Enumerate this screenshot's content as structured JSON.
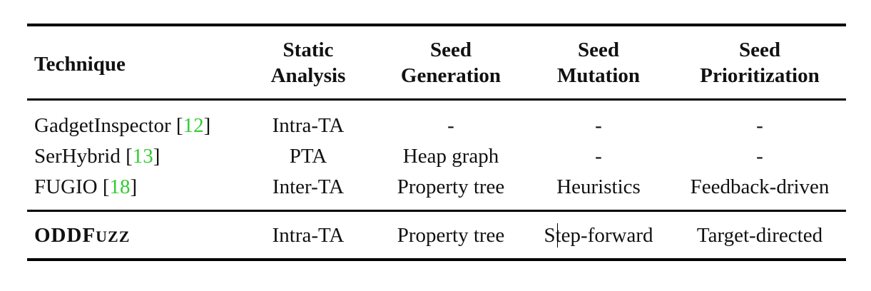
{
  "header": {
    "technique": "Technique",
    "static_analysis": [
      "Static",
      "Analysis"
    ],
    "seed_generation": [
      "Seed",
      "Generation"
    ],
    "seed_mutation": [
      "Seed",
      "Mutation"
    ],
    "seed_prioritization": [
      "Seed",
      "Prioritization"
    ]
  },
  "rows": [
    {
      "name": "GadgetInspector",
      "ref": "12",
      "static": "Intra-TA",
      "generation": "-",
      "mutation": "-",
      "prioritization": "-"
    },
    {
      "name": "SerHybrid",
      "ref": "13",
      "static": "PTA",
      "generation": "Heap graph",
      "mutation": "-",
      "prioritization": "-"
    },
    {
      "name": "FUGIO",
      "ref": "18",
      "static": "Inter-TA",
      "generation": "Property tree",
      "mutation": "Heuristics",
      "prioritization": "Feedback-driven"
    }
  ],
  "ours": {
    "name_main": "ODDF",
    "name_sc": "UZZ",
    "static": "Intra-TA",
    "generation": "Property tree",
    "mutation": "Step-forward",
    "prioritization": "Target-directed"
  },
  "colors": {
    "ref_link": "#33cc33"
  }
}
